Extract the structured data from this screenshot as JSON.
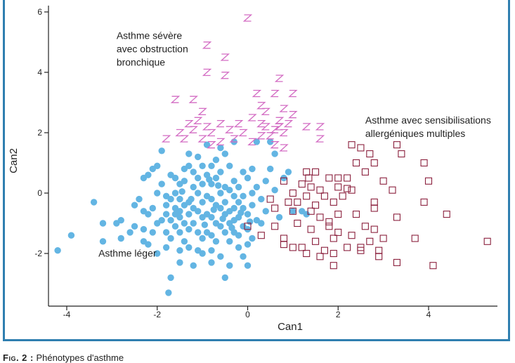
{
  "caption": {
    "label": "Fig. 2 :",
    "text": "Phénotypes d'asthme"
  },
  "colors": {
    "mild": "#63b5e3",
    "severe": "#d36cc3",
    "allergic": "#8a1f3c",
    "axis": "#222222",
    "frame": "#2f7fb0"
  },
  "chart_data": {
    "type": "scatter",
    "xlabel": "Can1",
    "ylabel": "Can2",
    "xlim": [
      -4.4,
      5.6
    ],
    "ylim": [
      -3.7,
      6.2
    ],
    "xticks": [
      -4,
      -2,
      0,
      2,
      4
    ],
    "xtick_labels": [
      "-4",
      "-2",
      "0",
      "2",
      "4"
    ],
    "yticks": [
      -2,
      0,
      2,
      4,
      6
    ],
    "ytick_labels": [
      "-2",
      "0",
      "2",
      "4",
      "6"
    ],
    "grid": false,
    "annotations": [
      {
        "lines": [
          "Asthme sévère",
          "avec obstruction",
          "bronchique"
        ],
        "x": -2.9,
        "y": 5.1
      },
      {
        "lines": [
          "Asthme avec sensibilisations",
          "allergéniques multiples"
        ],
        "x": 2.6,
        "y": 2.3
      },
      {
        "lines": [
          "Asthme léger"
        ],
        "x": -3.3,
        "y": -2.1
      }
    ],
    "series": [
      {
        "marker": "circle",
        "values": [
          [
            -4.2,
            -1.9
          ],
          [
            -3.9,
            -1.4
          ],
          [
            -3.4,
            -0.3
          ],
          [
            -3.2,
            -1.0
          ],
          [
            -3.2,
            -1.6
          ],
          [
            -2.9,
            -1.0
          ],
          [
            -2.8,
            -0.9
          ],
          [
            -2.8,
            -1.5
          ],
          [
            -2.6,
            -1.3
          ],
          [
            -2.5,
            -0.4
          ],
          [
            -2.5,
            -1.1
          ],
          [
            -2.4,
            -0.2
          ],
          [
            -2.3,
            0.5
          ],
          [
            -2.3,
            -0.6
          ],
          [
            -2.3,
            -1.2
          ],
          [
            -2.2,
            0.6
          ],
          [
            -2.2,
            -0.7
          ],
          [
            -2.2,
            -1.7
          ],
          [
            -2.1,
            0.8
          ],
          [
            -2.1,
            -0.5
          ],
          [
            -2.1,
            -1.3
          ],
          [
            -2.0,
            0.0
          ],
          [
            -2.0,
            0.9
          ],
          [
            -2.0,
            -1.0
          ],
          [
            -2.0,
            -2.0
          ],
          [
            -1.9,
            1.4
          ],
          [
            -1.9,
            0.3
          ],
          [
            -1.8,
            -0.1
          ],
          [
            -1.8,
            -0.4
          ],
          [
            -1.8,
            -0.7
          ],
          [
            -1.8,
            -1.3
          ],
          [
            -1.8,
            -1.8
          ],
          [
            -1.7,
            -2.8
          ],
          [
            -1.7,
            0.6
          ],
          [
            -1.7,
            -0.2
          ],
          [
            -1.7,
            -0.9
          ],
          [
            -1.7,
            -1.5
          ],
          [
            -1.6,
            0.5
          ],
          [
            -1.6,
            0.0
          ],
          [
            -1.6,
            -0.5
          ],
          [
            -1.6,
            -1.1
          ],
          [
            -1.5,
            0.3
          ],
          [
            -1.5,
            -0.2
          ],
          [
            -1.5,
            -0.8
          ],
          [
            -1.5,
            -1.3
          ],
          [
            -1.5,
            -1.9
          ],
          [
            -1.5,
            -2.3
          ],
          [
            -1.4,
            0.8
          ],
          [
            -1.4,
            0.4
          ],
          [
            -1.4,
            -0.4
          ],
          [
            -1.4,
            -1.0
          ],
          [
            -1.4,
            -1.6
          ],
          [
            -1.3,
            1.3
          ],
          [
            -1.3,
            0.9
          ],
          [
            -1.3,
            -0.3
          ],
          [
            -1.3,
            -0.7
          ],
          [
            -1.3,
            -1.2
          ],
          [
            -1.3,
            -1.8
          ],
          [
            -1.2,
            0.7
          ],
          [
            -1.2,
            0.2
          ],
          [
            -1.2,
            -0.5
          ],
          [
            -1.2,
            -1.0
          ],
          [
            -1.2,
            -2.4
          ],
          [
            -1.1,
            1.2
          ],
          [
            -1.1,
            0.5
          ],
          [
            -1.1,
            0.0
          ],
          [
            -1.1,
            -0.6
          ],
          [
            -1.1,
            -1.3
          ],
          [
            -1.1,
            -1.9
          ],
          [
            -1.0,
            0.9
          ],
          [
            -1.0,
            0.3
          ],
          [
            -1.0,
            -0.3
          ],
          [
            -1.0,
            -0.8
          ],
          [
            -1.0,
            -1.5
          ],
          [
            -1.0,
            -2.0
          ],
          [
            -0.9,
            1.6
          ],
          [
            -0.9,
            0.6
          ],
          [
            -0.9,
            -0.1
          ],
          [
            -0.9,
            -0.7
          ],
          [
            -0.9,
            -1.3
          ],
          [
            -0.8,
            0.9
          ],
          [
            -0.8,
            0.3
          ],
          [
            -0.8,
            -0.2
          ],
          [
            -0.8,
            -0.8
          ],
          [
            -0.8,
            -1.4
          ],
          [
            -0.8,
            -1.9
          ],
          [
            -0.8,
            -2.3
          ],
          [
            -0.7,
            1.1
          ],
          [
            -0.7,
            0.5
          ],
          [
            -0.7,
            -0.4
          ],
          [
            -0.7,
            -1.0
          ],
          [
            -0.7,
            -1.6
          ],
          [
            -0.6,
            1.5
          ],
          [
            -0.6,
            0.7
          ],
          [
            -0.6,
            0.0
          ],
          [
            -0.6,
            -0.5
          ],
          [
            -0.6,
            -1.1
          ],
          [
            -0.6,
            -2.1
          ],
          [
            -0.5,
            1.3
          ],
          [
            -0.5,
            0.2
          ],
          [
            -0.5,
            -0.3
          ],
          [
            -0.5,
            -0.7
          ],
          [
            -0.5,
            -1.3
          ],
          [
            -0.5,
            -2.8
          ],
          [
            -0.4,
            0.9
          ],
          [
            -0.4,
            0.1
          ],
          [
            -0.4,
            -0.6
          ],
          [
            -0.4,
            -1.0
          ],
          [
            -0.4,
            -1.6
          ],
          [
            -0.4,
            -2.4
          ],
          [
            -0.3,
            1.7
          ],
          [
            -0.3,
            0.4
          ],
          [
            -0.3,
            -0.1
          ],
          [
            -0.3,
            -0.5
          ],
          [
            -0.3,
            -0.9
          ],
          [
            -0.3,
            -1.3
          ],
          [
            -0.2,
            0.2
          ],
          [
            -0.2,
            -0.3
          ],
          [
            -0.2,
            -0.8
          ],
          [
            -0.2,
            -1.8
          ],
          [
            -0.1,
            0.7
          ],
          [
            -0.1,
            -0.1
          ],
          [
            -0.1,
            -0.5
          ],
          [
            -0.1,
            -1.1
          ],
          [
            -0.1,
            -2.1
          ],
          [
            0.0,
            0.5
          ],
          [
            0.0,
            -0.7
          ],
          [
            0.0,
            -1.2
          ],
          [
            0.0,
            -1.7
          ],
          [
            0.0,
            -2.4
          ],
          [
            0.1,
            0.8
          ],
          [
            0.1,
            0.0
          ],
          [
            0.1,
            -0.4
          ],
          [
            0.1,
            -1.5
          ],
          [
            0.2,
            1.7
          ],
          [
            0.2,
            0.2
          ],
          [
            0.2,
            -0.9
          ],
          [
            0.3,
            -0.2
          ],
          [
            0.3,
            -1.0
          ],
          [
            0.4,
            0.4
          ],
          [
            0.4,
            -0.6
          ],
          [
            0.5,
            1.7
          ],
          [
            0.5,
            0.8
          ],
          [
            0.6,
            1.3
          ],
          [
            0.6,
            0.1
          ],
          [
            0.7,
            -0.8
          ],
          [
            0.8,
            0.5
          ],
          [
            0.9,
            0.7
          ],
          [
            1.0,
            -0.6
          ],
          [
            1.2,
            -0.6
          ],
          [
            1.3,
            -0.7
          ],
          [
            -1.9,
            -0.9
          ],
          [
            -1.6,
            -0.7
          ],
          [
            -1.25,
            -0.2
          ],
          [
            -0.95,
            -1.05
          ],
          [
            -0.75,
            -0.55
          ],
          [
            -0.55,
            -0.85
          ],
          [
            -0.35,
            -1.15
          ],
          [
            -0.15,
            -0.65
          ],
          [
            -1.45,
            0.05
          ],
          [
            -0.65,
            0.25
          ],
          [
            -0.85,
            0.45
          ],
          [
            0.05,
            -0.95
          ],
          [
            -1.75,
            -3.3
          ],
          [
            -2.3,
            -1.6
          ],
          [
            -1.5,
            -0.6
          ],
          [
            -0.2,
            -1.4
          ]
        ]
      },
      {
        "marker": "z",
        "values": [
          [
            0.0,
            5.8
          ],
          [
            -0.9,
            4.9
          ],
          [
            -0.5,
            4.5
          ],
          [
            -0.9,
            4.0
          ],
          [
            -0.5,
            3.9
          ],
          [
            0.7,
            3.8
          ],
          [
            0.2,
            3.3
          ],
          [
            0.6,
            3.3
          ],
          [
            1.0,
            3.3
          ],
          [
            -1.6,
            3.1
          ],
          [
            -1.2,
            3.1
          ],
          [
            0.3,
            2.9
          ],
          [
            -1.0,
            2.7
          ],
          [
            0.4,
            2.7
          ],
          [
            0.8,
            2.8
          ],
          [
            -1.1,
            2.4
          ],
          [
            0.1,
            2.5
          ],
          [
            0.3,
            2.3
          ],
          [
            0.7,
            2.4
          ],
          [
            1.0,
            2.6
          ],
          [
            -1.3,
            2.3
          ],
          [
            -0.9,
            2.2
          ],
          [
            -0.6,
            2.3
          ],
          [
            -0.2,
            2.3
          ],
          [
            0.4,
            2.2
          ],
          [
            0.6,
            2.1
          ],
          [
            0.9,
            2.3
          ],
          [
            1.3,
            2.2
          ],
          [
            -1.5,
            2.0
          ],
          [
            -1.2,
            2.1
          ],
          [
            -0.8,
            2.0
          ],
          [
            -0.4,
            2.1
          ],
          [
            -0.1,
            2.0
          ],
          [
            0.3,
            1.9
          ],
          [
            0.5,
            1.9
          ],
          [
            0.8,
            2.0
          ],
          [
            1.6,
            2.2
          ],
          [
            -1.8,
            1.8
          ],
          [
            -1.4,
            1.8
          ],
          [
            -1.0,
            1.8
          ],
          [
            -0.6,
            1.7
          ],
          [
            -0.3,
            1.8
          ],
          [
            0.1,
            1.7
          ],
          [
            0.6,
            1.6
          ],
          [
            0.8,
            1.5
          ],
          [
            -0.8,
            1.6
          ],
          [
            1.6,
            1.8
          ],
          [
            0.7,
            2.2
          ]
        ]
      },
      {
        "marker": "square",
        "values": [
          [
            2.3,
            1.6
          ],
          [
            2.5,
            1.5
          ],
          [
            3.3,
            1.6
          ],
          [
            3.4,
            1.3
          ],
          [
            2.7,
            1.3
          ],
          [
            2.4,
            1.0
          ],
          [
            2.8,
            1.0
          ],
          [
            3.9,
            1.0
          ],
          [
            1.3,
            0.7
          ],
          [
            1.5,
            0.7
          ],
          [
            1.8,
            0.5
          ],
          [
            2.0,
            0.5
          ],
          [
            2.2,
            0.5
          ],
          [
            2.6,
            0.7
          ],
          [
            3.0,
            0.4
          ],
          [
            4.0,
            0.4
          ],
          [
            0.8,
            0.4
          ],
          [
            1.2,
            0.3
          ],
          [
            1.4,
            0.2
          ],
          [
            1.6,
            0.1
          ],
          [
            2.0,
            0.2
          ],
          [
            2.3,
            0.1
          ],
          [
            3.2,
            0.1
          ],
          [
            1.0,
            0.0
          ],
          [
            1.3,
            -0.1
          ],
          [
            1.7,
            -0.1
          ],
          [
            2.1,
            -0.1
          ],
          [
            0.5,
            -0.2
          ],
          [
            0.9,
            -0.3
          ],
          [
            1.1,
            -0.3
          ],
          [
            1.5,
            -0.4
          ],
          [
            1.9,
            -0.3
          ],
          [
            2.8,
            -0.3
          ],
          [
            3.9,
            -0.3
          ],
          [
            0.6,
            -0.5
          ],
          [
            1.0,
            -0.6
          ],
          [
            1.4,
            -0.6
          ],
          [
            1.6,
            -0.8
          ],
          [
            2.0,
            -0.7
          ],
          [
            2.4,
            -0.7
          ],
          [
            2.8,
            -0.5
          ],
          [
            4.4,
            -0.7
          ],
          [
            0.0,
            -1.1
          ],
          [
            0.6,
            -1.1
          ],
          [
            1.1,
            -1.0
          ],
          [
            1.4,
            -1.2
          ],
          [
            1.8,
            -1.1
          ],
          [
            2.0,
            -1.3
          ],
          [
            2.6,
            -1.1
          ],
          [
            3.3,
            -0.8
          ],
          [
            0.3,
            -1.4
          ],
          [
            0.8,
            -1.5
          ],
          [
            1.5,
            -1.6
          ],
          [
            1.9,
            -1.5
          ],
          [
            2.3,
            -1.4
          ],
          [
            2.8,
            -1.2
          ],
          [
            3.0,
            -1.5
          ],
          [
            3.7,
            -1.5
          ],
          [
            0.8,
            -1.7
          ],
          [
            1.2,
            -1.8
          ],
          [
            1.7,
            -1.9
          ],
          [
            2.2,
            -1.8
          ],
          [
            2.5,
            -1.8
          ],
          [
            2.9,
            -1.9
          ],
          [
            5.3,
            -1.6
          ],
          [
            1.3,
            -2.0
          ],
          [
            1.6,
            -2.1
          ],
          [
            1.9,
            -2.0
          ],
          [
            2.5,
            -1.9
          ],
          [
            2.9,
            -2.1
          ],
          [
            1.9,
            -2.4
          ],
          [
            3.3,
            -2.3
          ],
          [
            4.1,
            -2.4
          ],
          [
            1.0,
            -1.8
          ],
          [
            2.2,
            0.15
          ],
          [
            1.8,
            -0.95
          ],
          [
            2.7,
            -1.6
          ],
          [
            1.35,
            0.5
          ]
        ]
      }
    ]
  }
}
